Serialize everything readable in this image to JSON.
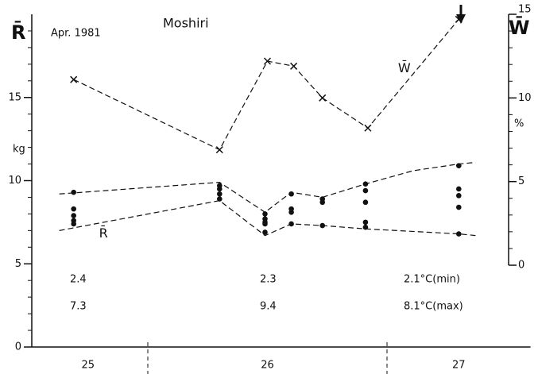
{
  "chart_data": {
    "type": "scatter",
    "title": "Moshiri",
    "subtitle": "Apr. 1981",
    "y_label": "R̄",
    "y_unit": "kg",
    "y2_label": "W̄",
    "y2_unit": "%",
    "xlim": [
      25.5,
      27.6
    ],
    "xticks": [
      {
        "value": 25.75,
        "label": "25"
      },
      {
        "value": 26.5,
        "label": "26"
      },
      {
        "value": 27.3,
        "label": "27"
      }
    ],
    "day_boundaries": [
      26,
      27
    ],
    "ylim": [
      0,
      20
    ],
    "yticks": [
      0,
      5,
      10,
      15
    ],
    "yminorticks": [
      1,
      2,
      3,
      4,
      6,
      7,
      8,
      9,
      11,
      12,
      13,
      14,
      16,
      17,
      18,
      19
    ],
    "y2lim": [
      0,
      15
    ],
    "y2ticks": [
      0,
      5,
      10,
      15
    ],
    "y2minorticks": [
      1,
      2,
      3,
      4,
      6,
      7,
      8,
      9,
      11,
      12,
      13,
      14
    ],
    "color": "#111111",
    "points": {
      "label": "R̄",
      "x": [
        25.69,
        25.69,
        25.69,
        25.69,
        25.69,
        26.3,
        26.3,
        26.3,
        26.3,
        26.49,
        26.49,
        26.49,
        26.49,
        26.49,
        26.6,
        26.6,
        26.6,
        26.6,
        26.73,
        26.73,
        26.73,
        26.91,
        26.91,
        26.91,
        26.91,
        26.91,
        27.3,
        27.3,
        27.3,
        27.3,
        27.3
      ],
      "values": [
        9.3,
        8.3,
        7.9,
        7.6,
        7.4,
        9.7,
        9.5,
        9.2,
        8.9,
        8.0,
        7.7,
        7.5,
        7.4,
        6.9,
        9.2,
        8.3,
        8.1,
        7.4,
        8.9,
        8.7,
        7.3,
        9.8,
        9.4,
        8.7,
        7.5,
        7.2,
        10.9,
        9.5,
        9.1,
        8.4,
        6.8
      ]
    },
    "envelopes": [
      {
        "x": [
          25.63,
          26.3,
          26.49,
          26.6,
          26.73,
          26.91,
          27.11,
          27.3,
          27.37
        ],
        "values": [
          9.2,
          9.9,
          8.1,
          9.3,
          9.0,
          9.8,
          10.6,
          11.0,
          11.1
        ]
      },
      {
        "x": [
          25.63,
          26.3,
          26.49,
          26.6,
          26.73,
          26.91,
          27.3,
          27.37
        ],
        "values": [
          7.0,
          8.8,
          6.7,
          7.4,
          7.3,
          7.1,
          6.8,
          6.7
        ]
      }
    ],
    "series": [
      {
        "name": "W̄",
        "axis": "y2",
        "x": [
          25.69,
          26.3,
          26.5,
          26.61,
          26.73,
          26.92,
          27.3
        ],
        "values": [
          11.1,
          6.9,
          12.2,
          11.9,
          10.0,
          8.2,
          14.7
        ]
      }
    ],
    "temperatures": {
      "min": [
        "2.4",
        "2.3",
        "2.1°C(min)"
      ],
      "max": [
        "7.3",
        "9.4",
        "8.1°C(max)"
      ]
    }
  }
}
